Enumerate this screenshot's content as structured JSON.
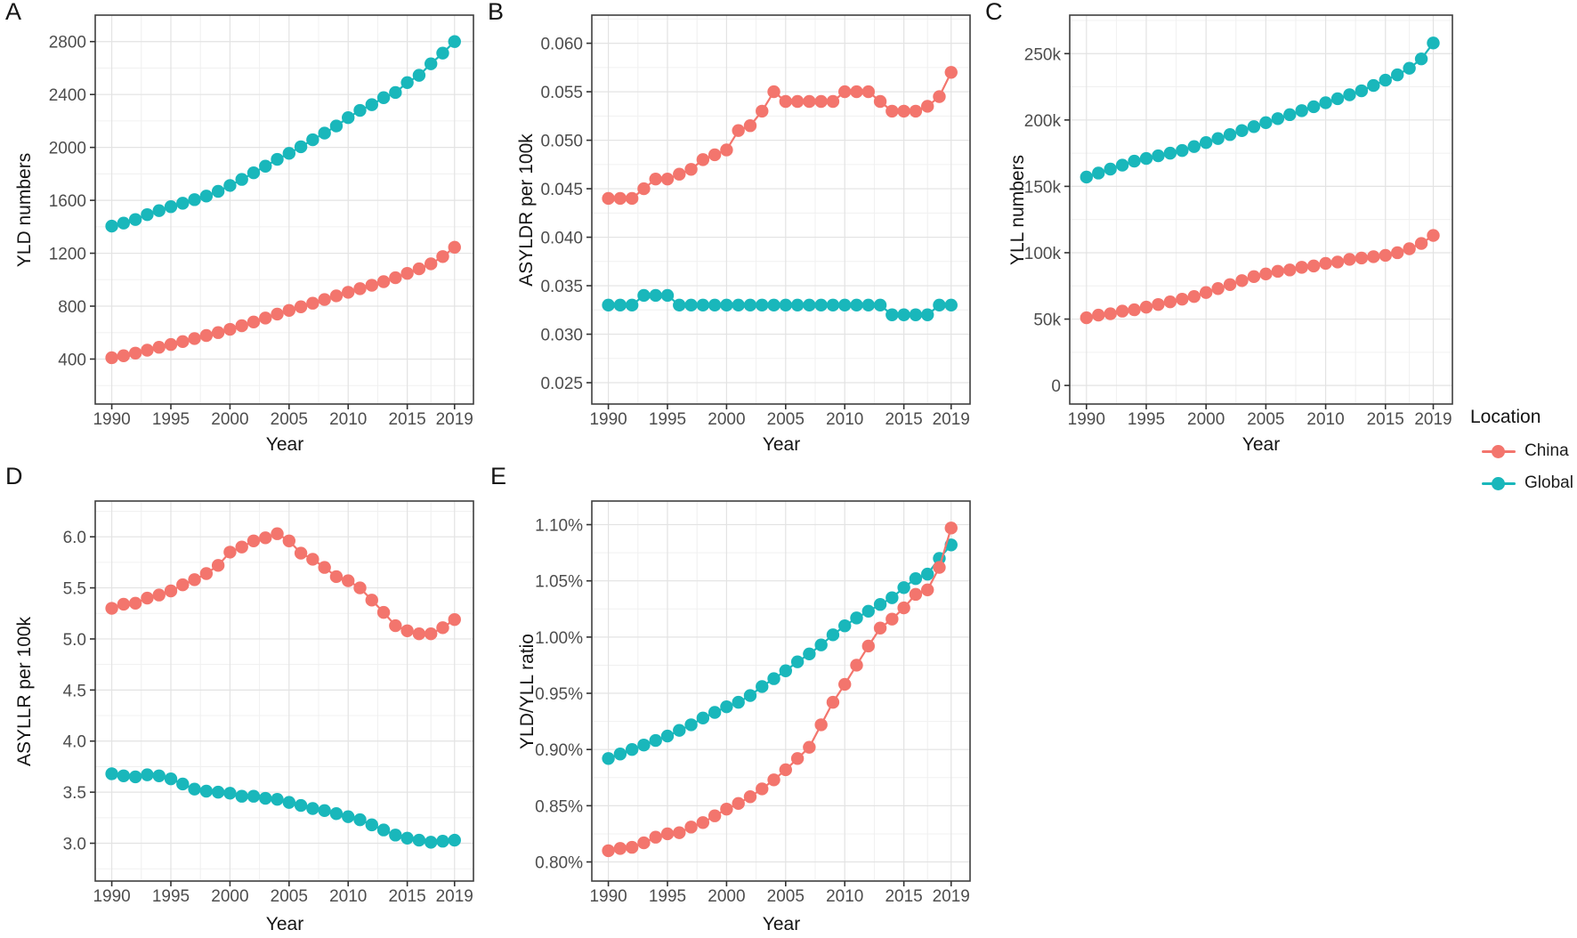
{
  "figure": {
    "background": "#ffffff"
  },
  "legend": {
    "title": "Location",
    "position": "right",
    "entries": [
      {
        "label": "China",
        "color": "#f3756d"
      },
      {
        "label": "Global",
        "color": "#19b7bb"
      }
    ]
  },
  "chart_data": [
    {
      "panel_label": "A",
      "type": "line",
      "title": "",
      "xlabel": "Year",
      "ylabel": "YLD numbers",
      "grid": true,
      "legend_position": "right",
      "x": [
        1990,
        1991,
        1992,
        1993,
        1994,
        1995,
        1996,
        1997,
        1998,
        1999,
        2000,
        2001,
        2002,
        2003,
        2004,
        2005,
        2006,
        2007,
        2008,
        2009,
        2010,
        2011,
        2012,
        2013,
        2014,
        2015,
        2016,
        2017,
        2018,
        2019
      ],
      "xlim": [
        1988.6,
        2020.6
      ],
      "ylim": [
        60,
        3000
      ],
      "x_ticks": [
        1990,
        1995,
        2000,
        2005,
        2010,
        2015,
        2019
      ],
      "x_tick_labels": [
        "1990",
        "1995",
        "2000",
        "2005",
        "2010",
        "2015",
        "2019"
      ],
      "y_ticks": [
        400,
        800,
        1200,
        1600,
        2000,
        2400,
        2800
      ],
      "y_tick_labels": [
        "400",
        "800",
        "1200",
        "1600",
        "2000",
        "2400",
        "2800"
      ],
      "series": [
        {
          "name": "China",
          "color": "#f3756d",
          "values": [
            410,
            425,
            445,
            467,
            489,
            510,
            532,
            555,
            578,
            600,
            625,
            652,
            680,
            710,
            740,
            768,
            795,
            822,
            850,
            878,
            905,
            932,
            958,
            985,
            1015,
            1048,
            1082,
            1120,
            1175,
            1245
          ]
        },
        {
          "name": "Global",
          "color": "#19b7bb",
          "values": [
            1405,
            1428,
            1455,
            1492,
            1522,
            1552,
            1578,
            1605,
            1632,
            1668,
            1712,
            1758,
            1808,
            1858,
            1910,
            1955,
            2005,
            2058,
            2108,
            2162,
            2225,
            2280,
            2323,
            2376,
            2415,
            2490,
            2545,
            2632,
            2713,
            2800
          ]
        }
      ]
    },
    {
      "panel_label": "B",
      "type": "line",
      "title": "",
      "xlabel": "Year",
      "ylabel": "ASYLDR per 100k",
      "grid": true,
      "legend_position": "right",
      "x": [
        1990,
        1991,
        1992,
        1993,
        1994,
        1995,
        1996,
        1997,
        1998,
        1999,
        2000,
        2001,
        2002,
        2003,
        2004,
        2005,
        2006,
        2007,
        2008,
        2009,
        2010,
        2011,
        2012,
        2013,
        2014,
        2015,
        2016,
        2017,
        2018,
        2019
      ],
      "xlim": [
        1988.6,
        2020.6
      ],
      "ylim": [
        0.0228,
        0.0629
      ],
      "x_ticks": [
        1990,
        1995,
        2000,
        2005,
        2010,
        2015,
        2019
      ],
      "x_tick_labels": [
        "1990",
        "1995",
        "2000",
        "2005",
        "2010",
        "2015",
        "2019"
      ],
      "y_ticks": [
        0.025,
        0.03,
        0.035,
        0.04,
        0.045,
        0.05,
        0.055,
        0.06
      ],
      "y_tick_labels": [
        "0.025",
        "0.030",
        "0.035",
        "0.040",
        "0.045",
        "0.050",
        "0.055",
        "0.060"
      ],
      "series": [
        {
          "name": "China",
          "color": "#f3756d",
          "values": [
            0.044,
            0.044,
            0.044,
            0.045,
            0.046,
            0.046,
            0.0465,
            0.047,
            0.048,
            0.0485,
            0.049,
            0.051,
            0.0515,
            0.053,
            0.055,
            0.054,
            0.054,
            0.054,
            0.054,
            0.054,
            0.055,
            0.055,
            0.055,
            0.054,
            0.053,
            0.053,
            0.053,
            0.0535,
            0.0545,
            0.057
          ]
        },
        {
          "name": "Global",
          "color": "#19b7bb",
          "values": [
            0.033,
            0.033,
            0.033,
            0.034,
            0.034,
            0.034,
            0.033,
            0.033,
            0.033,
            0.033,
            0.033,
            0.033,
            0.033,
            0.033,
            0.033,
            0.033,
            0.033,
            0.033,
            0.033,
            0.033,
            0.033,
            0.033,
            0.033,
            0.033,
            0.032,
            0.032,
            0.032,
            0.032,
            0.033,
            0.033
          ]
        }
      ]
    },
    {
      "panel_label": "C",
      "type": "line",
      "title": "",
      "xlabel": "Year",
      "ylabel": "YLL numbers",
      "grid": true,
      "legend_position": "right",
      "units": "thousands",
      "x": [
        1990,
        1991,
        1992,
        1993,
        1994,
        1995,
        1996,
        1997,
        1998,
        1999,
        2000,
        2001,
        2002,
        2003,
        2004,
        2005,
        2006,
        2007,
        2008,
        2009,
        2010,
        2011,
        2012,
        2013,
        2014,
        2015,
        2016,
        2017,
        2018,
        2019
      ],
      "xlim": [
        1988.6,
        2020.6
      ],
      "ylim": [
        -14,
        279
      ],
      "x_ticks": [
        1990,
        1995,
        2000,
        2005,
        2010,
        2015,
        2019
      ],
      "x_tick_labels": [
        "1990",
        "1995",
        "2000",
        "2005",
        "2010",
        "2015",
        "2019"
      ],
      "y_ticks": [
        0,
        50,
        100,
        150,
        200,
        250
      ],
      "y_tick_labels": [
        "0",
        "50k",
        "100k",
        "150k",
        "200k",
        "250k"
      ],
      "series": [
        {
          "name": "China",
          "color": "#f3756d",
          "values": [
            51,
            53,
            54,
            56,
            57,
            59,
            61,
            63,
            65,
            67,
            70,
            73,
            76,
            79,
            82,
            84,
            86,
            87,
            89,
            90,
            92,
            93,
            95,
            96,
            97,
            98,
            100,
            103,
            107,
            113
          ]
        },
        {
          "name": "Global",
          "color": "#19b7bb",
          "values": [
            157,
            160,
            163,
            166,
            169,
            171,
            173,
            175,
            177,
            180,
            183,
            186,
            189,
            192,
            195,
            198,
            201,
            204,
            207,
            210,
            213,
            216,
            219,
            222,
            226,
            230,
            234,
            239,
            246,
            258
          ]
        }
      ]
    },
    {
      "panel_label": "D",
      "type": "line",
      "title": "",
      "xlabel": "Year",
      "ylabel": "ASYLLR per 100k",
      "grid": true,
      "legend_position": "right",
      "x": [
        1990,
        1991,
        1992,
        1993,
        1994,
        1995,
        1996,
        1997,
        1998,
        1999,
        2000,
        2001,
        2002,
        2003,
        2004,
        2005,
        2006,
        2007,
        2008,
        2009,
        2010,
        2011,
        2012,
        2013,
        2014,
        2015,
        2016,
        2017,
        2018,
        2019
      ],
      "xlim": [
        1988.6,
        2020.6
      ],
      "ylim": [
        2.63,
        6.35
      ],
      "x_ticks": [
        1990,
        1995,
        2000,
        2005,
        2010,
        2015,
        2019
      ],
      "x_tick_labels": [
        "1990",
        "1995",
        "2000",
        "2005",
        "2010",
        "2015",
        "2019"
      ],
      "y_ticks": [
        3.0,
        3.5,
        4.0,
        4.5,
        5.0,
        5.5,
        6.0
      ],
      "y_tick_labels": [
        "3.0",
        "3.5",
        "4.0",
        "4.5",
        "5.0",
        "5.5",
        "6.0"
      ],
      "series": [
        {
          "name": "China",
          "color": "#f3756d",
          "values": [
            5.3,
            5.34,
            5.35,
            5.4,
            5.43,
            5.47,
            5.53,
            5.58,
            5.64,
            5.72,
            5.85,
            5.9,
            5.96,
            5.99,
            6.03,
            5.96,
            5.84,
            5.78,
            5.7,
            5.61,
            5.57,
            5.5,
            5.38,
            5.26,
            5.13,
            5.08,
            5.05,
            5.05,
            5.11,
            5.19
          ]
        },
        {
          "name": "Global",
          "color": "#19b7bb",
          "values": [
            3.68,
            3.66,
            3.65,
            3.67,
            3.66,
            3.63,
            3.58,
            3.53,
            3.51,
            3.5,
            3.49,
            3.46,
            3.46,
            3.44,
            3.43,
            3.4,
            3.37,
            3.34,
            3.32,
            3.29,
            3.26,
            3.23,
            3.18,
            3.13,
            3.08,
            3.05,
            3.03,
            3.01,
            3.02,
            3.03
          ]
        }
      ]
    },
    {
      "panel_label": "E",
      "type": "line",
      "title": "",
      "xlabel": "Year",
      "ylabel": "YLD/YLL ratio",
      "grid": true,
      "legend_position": "right",
      "units": "percent",
      "x": [
        1990,
        1991,
        1992,
        1993,
        1994,
        1995,
        1996,
        1997,
        1998,
        1999,
        2000,
        2001,
        2002,
        2003,
        2004,
        2005,
        2006,
        2007,
        2008,
        2009,
        2010,
        2011,
        2012,
        2013,
        2014,
        2015,
        2016,
        2017,
        2018,
        2019
      ],
      "xlim": [
        1988.6,
        2020.6
      ],
      "ylim": [
        0.783,
        1.121
      ],
      "x_ticks": [
        1990,
        1995,
        2000,
        2005,
        2010,
        2015,
        2019
      ],
      "x_tick_labels": [
        "1990",
        "1995",
        "2000",
        "2005",
        "2010",
        "2015",
        "2019"
      ],
      "y_ticks": [
        0.8,
        0.85,
        0.9,
        0.95,
        1.0,
        1.05,
        1.1
      ],
      "y_tick_labels": [
        "0.80%",
        "0.85%",
        "0.90%",
        "0.95%",
        "1.00%",
        "1.05%",
        "1.10%"
      ],
      "series": [
        {
          "name": "China",
          "color": "#f3756d",
          "values": [
            0.81,
            0.812,
            0.813,
            0.817,
            0.822,
            0.825,
            0.826,
            0.831,
            0.835,
            0.841,
            0.847,
            0.852,
            0.858,
            0.865,
            0.873,
            0.882,
            0.892,
            0.902,
            0.922,
            0.942,
            0.958,
            0.975,
            0.992,
            1.008,
            1.016,
            1.026,
            1.038,
            1.042,
            1.062,
            1.097
          ]
        },
        {
          "name": "Global",
          "color": "#19b7bb",
          "values": [
            0.892,
            0.896,
            0.9,
            0.904,
            0.908,
            0.912,
            0.917,
            0.922,
            0.928,
            0.933,
            0.938,
            0.942,
            0.948,
            0.956,
            0.963,
            0.97,
            0.978,
            0.985,
            0.993,
            1.002,
            1.01,
            1.017,
            1.023,
            1.029,
            1.035,
            1.044,
            1.052,
            1.056,
            1.07,
            1.082
          ]
        }
      ]
    }
  ]
}
